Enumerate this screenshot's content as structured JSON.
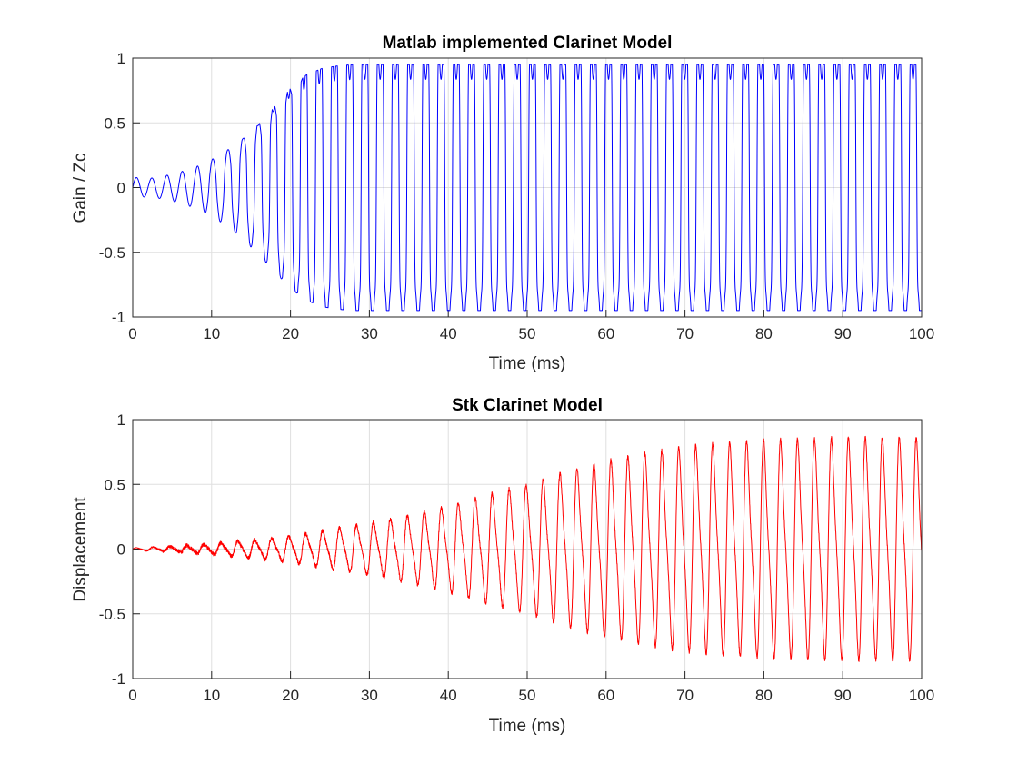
{
  "chart_data": [
    {
      "type": "line",
      "title": "Matlab implemented Clarinet Model",
      "xlabel": "Time (ms)",
      "ylabel": "Gain / Zc",
      "xlim": [
        0,
        100
      ],
      "ylim": [
        -1,
        1
      ],
      "xticks": [
        "0",
        "10",
        "20",
        "30",
        "40",
        "50",
        "60",
        "70",
        "80",
        "90",
        "100"
      ],
      "yticks": [
        "-1",
        "-0.5",
        "0",
        "0.5",
        "1"
      ],
      "grid": true,
      "color": "#0000ff",
      "x": [
        0,
        2,
        4,
        6,
        8,
        10,
        12,
        14,
        16,
        18,
        20,
        22,
        24,
        26,
        28,
        30,
        40,
        50,
        60,
        70,
        80,
        90,
        100
      ],
      "y": [
        0.08,
        0.07,
        0.09,
        0.12,
        0.16,
        0.22,
        0.3,
        0.4,
        0.52,
        0.65,
        0.78,
        0.87,
        0.92,
        0.94,
        0.95,
        0.95,
        0.95,
        0.95,
        0.95,
        0.95,
        0.95,
        0.95,
        0.95
      ]
    },
    {
      "type": "line",
      "title": "Stk Clarinet Model",
      "xlabel": "Time (ms)",
      "ylabel": "Displacement",
      "xlim": [
        0,
        100
      ],
      "ylim": [
        -1,
        1
      ],
      "xticks": [
        "0",
        "10",
        "20",
        "30",
        "40",
        "50",
        "60",
        "70",
        "80",
        "90",
        "100"
      ],
      "yticks": [
        "-1",
        "-0.5",
        "0",
        "0.5",
        "1"
      ],
      "grid": true,
      "color": "#ff0000",
      "x": [
        0,
        5,
        10,
        15,
        20,
        25,
        30,
        35,
        40,
        45,
        50,
        55,
        60,
        65,
        70,
        75,
        80,
        85,
        90,
        95,
        100
      ],
      "y": [
        0.01,
        0.02,
        0.04,
        0.07,
        0.1,
        0.15,
        0.2,
        0.26,
        0.33,
        0.42,
        0.5,
        0.6,
        0.68,
        0.74,
        0.79,
        0.82,
        0.84,
        0.85,
        0.86,
        0.86,
        0.86
      ]
    }
  ]
}
